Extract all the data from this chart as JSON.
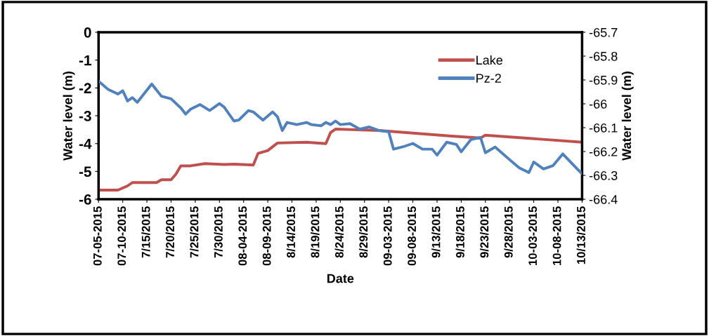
{
  "chart_data": {
    "type": "line",
    "xlabel": "Date",
    "ylabel": "Water level (m)",
    "y2label": "Water level (m)",
    "xlim": [
      "2015-07-05",
      "2015-10-13"
    ],
    "xticks": [
      {
        "value": "2015-07-05",
        "label": "07-05-2015"
      },
      {
        "value": "2015-07-10",
        "label": "07-10-2015"
      },
      {
        "value": "2015-07-15",
        "label": "7/15/2015"
      },
      {
        "value": "2015-07-20",
        "label": "7/20/2015"
      },
      {
        "value": "2015-07-25",
        "label": "7/25/2015"
      },
      {
        "value": "2015-07-30",
        "label": "7/30/2015"
      },
      {
        "value": "2015-08-04",
        "label": "08-04-2015"
      },
      {
        "value": "2015-08-09",
        "label": "08-09-2015"
      },
      {
        "value": "2015-08-14",
        "label": "8/14/2015"
      },
      {
        "value": "2015-08-19",
        "label": "8/19/2015"
      },
      {
        "value": "2015-08-24",
        "label": "8/24/2015"
      },
      {
        "value": "2015-08-29",
        "label": "8/29/2015"
      },
      {
        "value": "2015-09-03",
        "label": "09-03-2015"
      },
      {
        "value": "2015-09-08",
        "label": "09-08-2015"
      },
      {
        "value": "2015-09-13",
        "label": "9/13/2015"
      },
      {
        "value": "2015-09-18",
        "label": "9/18/2015"
      },
      {
        "value": "2015-09-23",
        "label": "9/23/2015"
      },
      {
        "value": "2015-09-28",
        "label": "9/28/2015"
      },
      {
        "value": "2015-10-03",
        "label": "10-03-2015"
      },
      {
        "value": "2015-10-08",
        "label": "10-08-2015"
      },
      {
        "value": "2015-10-13",
        "label": "10/13/2015"
      }
    ],
    "ylim": [
      -6,
      0
    ],
    "yticks": [
      -6,
      -5,
      -4,
      -3,
      -2,
      -1,
      0
    ],
    "y2lim": [
      -66.4,
      -65.7
    ],
    "y2ticks": [
      -66.4,
      -66.3,
      -66.2,
      -66.1,
      {
        "value": -66.0,
        "label": "-66"
      },
      -65.9,
      -65.8,
      -65.7
    ],
    "grid": false,
    "legend": "top right",
    "marker": "none",
    "line_style": "solid",
    "series": [
      {
        "name": "Lake",
        "color": "#c0504d",
        "x": [
          "2015-07-05",
          "2015-07-09",
          "2015-07-11",
          "2015-07-12",
          "2015-07-17",
          "2015-07-18",
          "2015-07-20",
          "2015-07-21",
          "2015-07-22",
          "2015-07-24",
          "2015-07-27",
          "2015-07-31",
          "2015-08-02",
          "2015-08-06",
          "2015-08-07",
          "2015-08-09",
          "2015-08-11",
          "2015-08-17",
          "2015-08-21",
          "2015-08-22",
          "2015-08-23",
          "2015-09-01",
          "2015-09-16",
          "2015-09-22",
          "2015-09-23",
          "2015-10-13"
        ],
        "values": [
          -5.67,
          -5.67,
          -5.52,
          -5.4,
          -5.4,
          -5.3,
          -5.3,
          -5.1,
          -4.8,
          -4.8,
          -4.72,
          -4.75,
          -4.74,
          -4.77,
          -4.35,
          -4.25,
          -3.98,
          -3.95,
          -4.0,
          -3.6,
          -3.48,
          -3.53,
          -3.73,
          -3.8,
          -3.7,
          -3.95
        ]
      },
      {
        "name": "Pz-2",
        "color": "#4f81bd",
        "axis": "y2",
        "x": [
          "2015-07-05",
          "2015-07-07",
          "2015-07-09",
          "2015-07-10",
          "2015-07-11",
          "2015-07-12",
          "2015-07-13",
          "2015-07-16",
          "2015-07-18",
          "2015-07-20",
          "2015-07-22",
          "2015-07-23",
          "2015-07-24",
          "2015-07-26",
          "2015-07-28",
          "2015-07-30",
          "2015-07-31",
          "2015-08-02",
          "2015-08-03",
          "2015-08-05",
          "2015-08-06",
          "2015-08-08",
          "2015-08-10",
          "2015-08-11",
          "2015-08-12",
          "2015-08-13",
          "2015-08-15",
          "2015-08-17",
          "2015-08-18",
          "2015-08-20",
          "2015-08-21",
          "2015-08-22",
          "2015-08-23",
          "2015-08-24",
          "2015-08-26",
          "2015-08-28",
          "2015-08-30",
          "2015-09-01",
          "2015-09-03",
          "2015-09-04",
          "2015-09-06",
          "2015-09-08",
          "2015-09-10",
          "2015-09-12",
          "2015-09-13",
          "2015-09-15",
          "2015-09-17",
          "2015-09-18",
          "2015-09-20",
          "2015-09-22",
          "2015-09-23",
          "2015-09-25",
          "2015-09-28",
          "2015-09-30",
          "2015-10-02",
          "2015-10-03",
          "2015-10-05",
          "2015-10-07",
          "2015-10-09",
          "2015-10-12",
          "2015-10-13"
        ],
        "values": [
          -65.905,
          -65.94,
          -65.959,
          -65.945,
          -65.988,
          -65.974,
          -65.994,
          -65.917,
          -65.968,
          -65.979,
          -66.017,
          -66.043,
          -66.023,
          -66.003,
          -66.028,
          -65.999,
          -66.014,
          -66.072,
          -66.068,
          -66.028,
          -66.034,
          -66.068,
          -66.034,
          -66.054,
          -66.112,
          -66.078,
          -66.087,
          -66.078,
          -66.087,
          -66.092,
          -66.078,
          -66.087,
          -66.072,
          -66.087,
          -66.083,
          -66.106,
          -66.097,
          -66.112,
          -66.117,
          -66.19,
          -66.18,
          -66.166,
          -66.19,
          -66.19,
          -66.215,
          -66.161,
          -66.17,
          -66.201,
          -66.15,
          -66.141,
          -66.205,
          -66.181,
          -66.234,
          -66.268,
          -66.288,
          -66.244,
          -66.273,
          -66.259,
          -66.21,
          -66.273,
          -66.293
        ]
      }
    ]
  }
}
